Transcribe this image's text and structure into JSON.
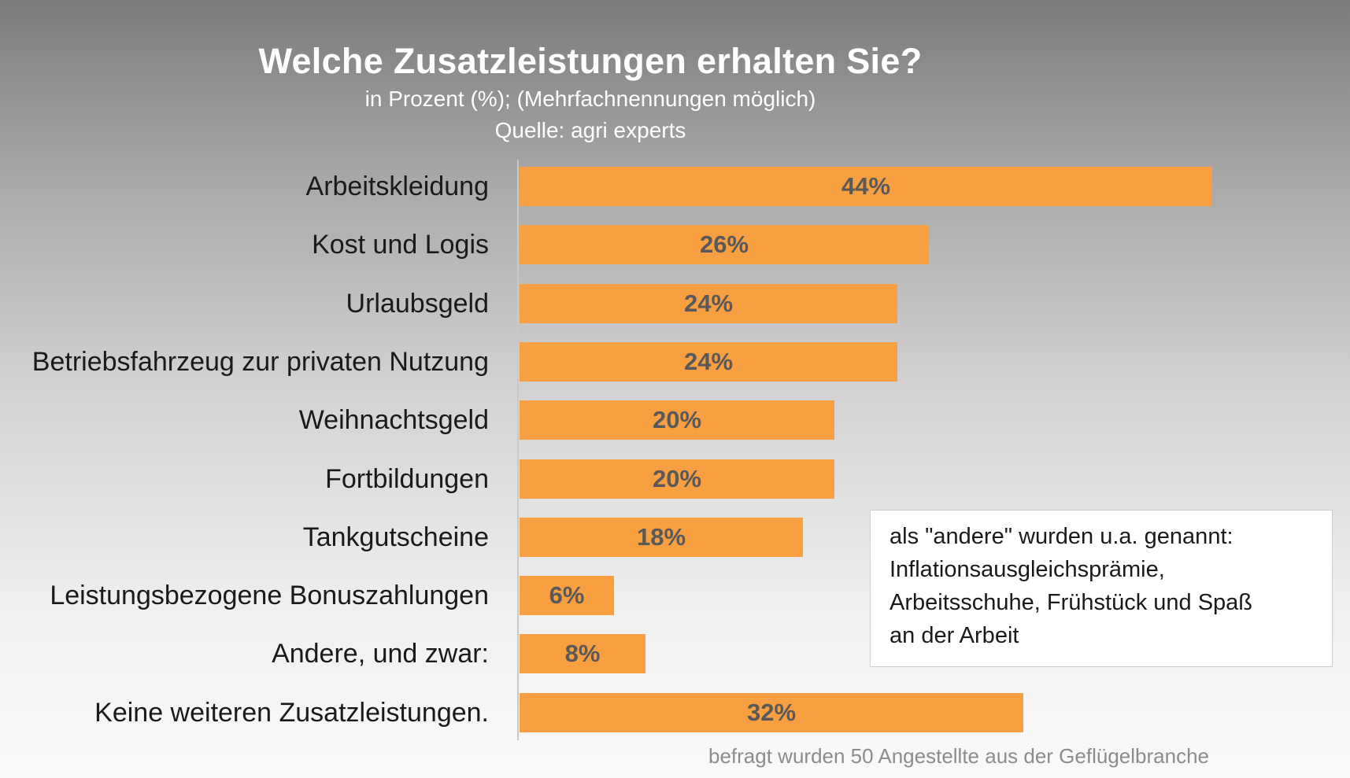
{
  "chart_data": {
    "type": "bar",
    "orientation": "horizontal",
    "title": "Welche Zusatzleistungen erhalten Sie?",
    "subtitle": "in Prozent (%); (Mehrfachnennungen möglich)",
    "source": "Quelle: agri experts",
    "categories": [
      "Arbeitskleidung",
      "Kost und Logis",
      "Urlaubsgeld",
      "Betriebsfahrzeug zur privaten Nutzung",
      "Weihnachtsgeld",
      "Fortbildungen",
      "Tankgutscheine",
      "Leistungsbezogene Bonuszahlungen",
      "Andere, und zwar:",
      "Keine weiteren Zusatzleistungen."
    ],
    "values": [
      44,
      26,
      24,
      24,
      20,
      20,
      18,
      6,
      8,
      32
    ],
    "data_labels": [
      "44%",
      "26%",
      "24%",
      "24%",
      "20%",
      "20%",
      "18%",
      "6%",
      "8%",
      "32%"
    ],
    "unit": "%",
    "xlim": [
      0,
      50
    ],
    "grid": false,
    "legend": "none",
    "bar_color": "#f8a041",
    "label_color": "#595959"
  },
  "note": {
    "lines": [
      "als \"andere\" wurden u.a. genannt:",
      "Inflationsausgleichsprämie,",
      "Arbeitsschuhe, Frühstück und Spaß",
      "an der Arbeit"
    ]
  },
  "footnote": "befragt wurden 50 Angestellte aus der Geflügelbranche"
}
